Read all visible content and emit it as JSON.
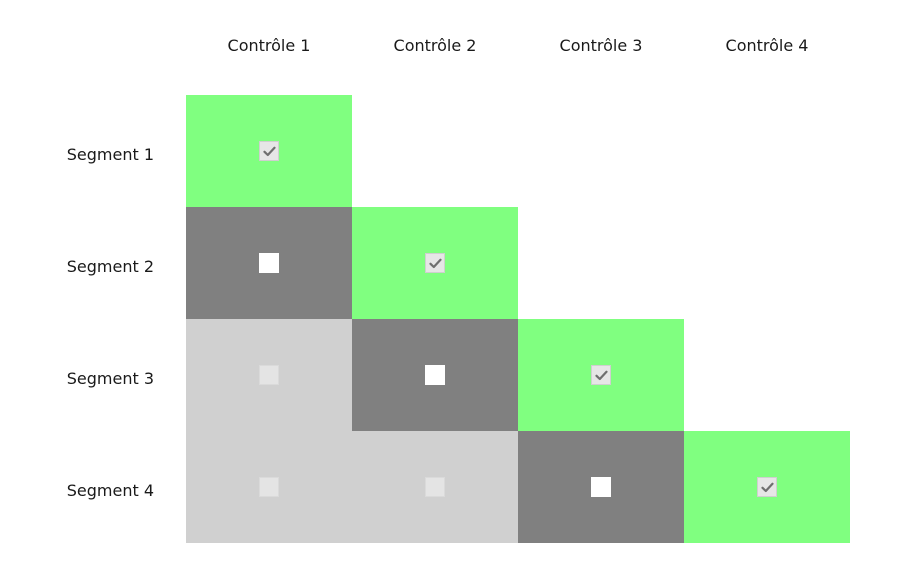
{
  "columns": [
    {
      "label": "Contrôle 1"
    },
    {
      "label": "Contrôle 2"
    },
    {
      "label": "Contrôle 3"
    },
    {
      "label": "Contrôle 4"
    }
  ],
  "rows": [
    {
      "label": "Segment 1"
    },
    {
      "label": "Segment 2"
    },
    {
      "label": "Segment 3"
    },
    {
      "label": "Segment 4"
    }
  ],
  "cells": [
    [
      {
        "state": "checked"
      },
      null,
      null,
      null
    ],
    [
      {
        "state": "unchecked"
      },
      {
        "state": "checked"
      },
      null,
      null
    ],
    [
      {
        "state": "disabled"
      },
      {
        "state": "unchecked"
      },
      {
        "state": "checked"
      },
      null
    ],
    [
      {
        "state": "disabled"
      },
      {
        "state": "disabled"
      },
      {
        "state": "unchecked"
      },
      {
        "state": "checked"
      }
    ]
  ],
  "colors": {
    "checked_bg": "#80ff80",
    "unchecked_bg": "#808080",
    "disabled_bg": "#d0d0d0"
  }
}
